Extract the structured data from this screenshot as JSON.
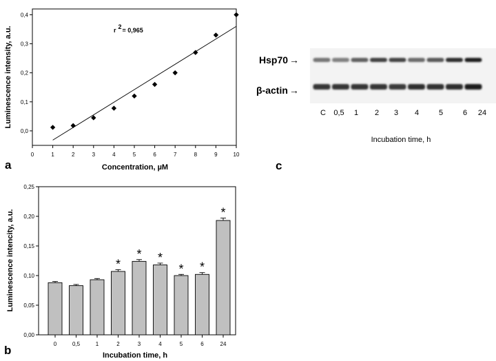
{
  "panels": {
    "a_letter": "a",
    "b_letter": "b",
    "c_letter": "c"
  },
  "chart_data": [
    {
      "panel": "a",
      "type": "scatter",
      "xlabel": "Concentration, µM",
      "ylabel": "Luminescence intensity, a.u.",
      "xlim": [
        0,
        10
      ],
      "ylim": [
        -0.05,
        0.42
      ],
      "x_ticks": [
        "0",
        "1",
        "2",
        "3",
        "4",
        "5",
        "6",
        "7",
        "8",
        "9",
        "10"
      ],
      "y_ticks": [
        "0,0",
        "0,1",
        "0,2",
        "0,3",
        "0,4"
      ],
      "x": [
        1,
        2,
        3,
        4,
        5,
        6,
        7,
        8,
        9,
        10
      ],
      "y": [
        0.012,
        0.018,
        0.045,
        0.078,
        0.12,
        0.16,
        0.2,
        0.27,
        0.33,
        0.4
      ],
      "fit_line": {
        "x": [
          1,
          10
        ],
        "y": [
          -0.032,
          0.36
        ]
      },
      "annotation": {
        "r_label": "r",
        "superscript": "2",
        "value": "= 0,965"
      },
      "grid": false
    },
    {
      "panel": "b",
      "type": "bar",
      "xlabel": "Incubation time, h",
      "ylabel": "Luminescence intencity, a.u.",
      "ylim": [
        0,
        0.25
      ],
      "y_ticks": [
        "0,00",
        "0,05",
        "0,10",
        "0,15",
        "0,20",
        "0,25"
      ],
      "categories": [
        "0",
        "0,5",
        "1",
        "2",
        "3",
        "4",
        "5",
        "6",
        "24"
      ],
      "values": [
        0.088,
        0.083,
        0.093,
        0.107,
        0.124,
        0.118,
        0.1,
        0.102,
        0.193
      ],
      "errors": [
        0.002,
        0.002,
        0.002,
        0.003,
        0.003,
        0.003,
        0.002,
        0.003,
        0.004
      ],
      "significance": [
        "",
        "",
        "",
        "*",
        "*",
        "*",
        "*",
        "*",
        "*"
      ],
      "bar_color": "#c0c0c0",
      "grid": false
    }
  ],
  "blot": {
    "rows": [
      {
        "label": "Hsp70",
        "arrow": "→"
      },
      {
        "label": "β-actin",
        "arrow": "→"
      }
    ],
    "lanes": [
      "C",
      "0,5",
      "1",
      "2",
      "3",
      "4",
      "5",
      "6",
      "24"
    ],
    "hsp70_intensity": [
      0.55,
      0.5,
      0.65,
      0.8,
      0.78,
      0.6,
      0.68,
      0.88,
      0.95
    ],
    "actin_intensity": [
      0.85,
      0.85,
      0.85,
      0.85,
      0.82,
      0.88,
      0.86,
      0.88,
      0.95
    ],
    "xlabel": "Incubation time, h"
  }
}
